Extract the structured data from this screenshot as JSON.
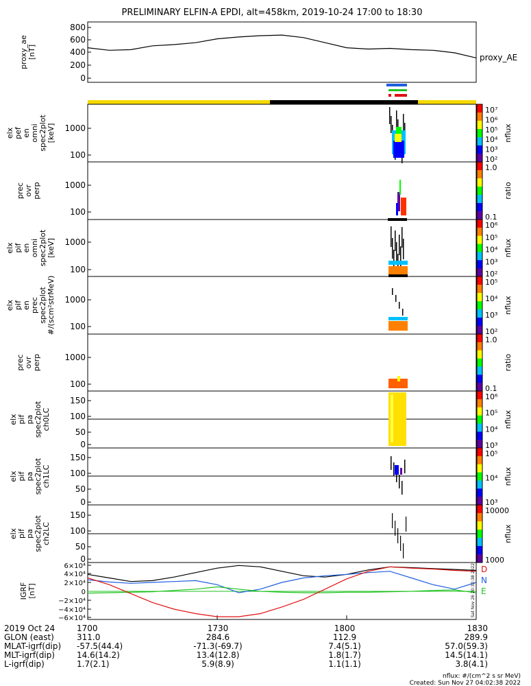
{
  "title": "PRELIMINARY ELFIN-A EPDI, alt=458km, 2019-10-24 17:00 to 18:30",
  "colors": {
    "yellow": "#f5d800",
    "black": "#000000",
    "blue": "#1e5ddf",
    "green": "#1ec21e",
    "red": "#e01010"
  },
  "panels": [
    {
      "id": "ae",
      "ylabel": [
        "proxy_ae",
        "[nT]"
      ],
      "right": "proxy_AE",
      "yticks": [
        "800",
        "600",
        "400",
        "200",
        "0"
      ]
    },
    {
      "id": "p1",
      "ylabel": [
        "elx",
        "pef",
        "en",
        "omni",
        "spec2plot",
        "[keV]"
      ],
      "yticks": [
        "1000",
        "100"
      ],
      "cbar_label": "nflux",
      "cbar_ticks": [
        "10⁷",
        "10⁶",
        "10⁵",
        "10⁴",
        "10³",
        "10²"
      ]
    },
    {
      "id": "p2",
      "ylabel": [
        "prec",
        "ovr",
        "perp"
      ],
      "yticks": [
        "1000",
        "100"
      ],
      "cbar_label": "ratio",
      "cbar_ticks": [
        "1.0",
        "0.1"
      ]
    },
    {
      "id": "p3",
      "ylabel": [
        "elx",
        "pif",
        "en",
        "omni",
        "spec2plot",
        "[keV]"
      ],
      "yticks": [
        "1000",
        "100"
      ],
      "cbar_label": "nflux",
      "cbar_ticks": [
        "10⁶",
        "10⁵",
        "10⁴",
        "10³",
        "10²"
      ]
    },
    {
      "id": "p4",
      "ylabel": [
        "elx",
        "pif",
        "en",
        "prec",
        "spec2plot",
        "#/(scm²strMeV)"
      ],
      "yticks": [
        "1000",
        "100"
      ],
      "cbar_label": "nflux",
      "cbar_ticks": [
        "10⁵",
        "10⁴",
        "10³",
        "10²"
      ]
    },
    {
      "id": "p5",
      "ylabel": [
        "prec",
        "ovr",
        "perp"
      ],
      "yticks": [
        "1000",
        "100"
      ],
      "cbar_label": "ratio",
      "cbar_ticks": [
        "1.0",
        "0.1"
      ]
    },
    {
      "id": "p6",
      "ylabel": [
        "elx",
        "pif",
        "pa",
        "spec2plot",
        "ch0LC"
      ],
      "yticks": [
        "150",
        "100",
        "50",
        "0"
      ],
      "cbar_label": "nflux",
      "cbar_ticks": [
        "10⁶",
        "10⁵",
        "10⁴",
        "10³"
      ]
    },
    {
      "id": "p7",
      "ylabel": [
        "elx",
        "pif",
        "pa",
        "spec2plot",
        "ch1LC"
      ],
      "yticks": [
        "150",
        "100",
        "50",
        "0"
      ],
      "cbar_label": "nflux",
      "cbar_ticks": [
        "10⁵",
        "10⁴",
        "10³"
      ]
    },
    {
      "id": "p8",
      "ylabel": [
        "elx",
        "pif",
        "pa",
        "spec2plot",
        "ch2LC"
      ],
      "yticks": [
        "150",
        "100",
        "50",
        "0"
      ],
      "cbar_label": "nflux",
      "cbar_ticks": [
        "10000",
        "1000"
      ]
    },
    {
      "id": "igrf",
      "ylabel": [
        "IGRF",
        "[nT]"
      ],
      "yticks": [
        "6×10⁴",
        "4×10⁴",
        "2×10⁴",
        "0",
        "−2×10⁴",
        "−4×10⁴",
        "−6×10⁴"
      ],
      "legend": [
        "D",
        "N",
        "E"
      ]
    }
  ],
  "xaxis": {
    "rows": [
      {
        "label": "2019 Oct 24",
        "values": [
          "1700",
          "1730",
          "1800",
          "1830"
        ]
      },
      {
        "label": "GLON (east)",
        "values": [
          "311.0",
          "284.6",
          "112.9",
          "289.9"
        ]
      },
      {
        "label": "MLAT-igrf(dip)",
        "values": [
          "-57.5(44.4)",
          "-71.3(-69.7)",
          "7.4(5.1)",
          "57.0(59.3)"
        ]
      },
      {
        "label": "MLT-igrf(dip)",
        "values": [
          "14.6(14.2)",
          "13.4(12.8)",
          "1.8(1.7)",
          "14.5(14.1)"
        ]
      },
      {
        "label": "L-igrf(dip)",
        "values": [
          "1.7(2.1)",
          "5.9(8.9)",
          "1.1(1.1)",
          "3.8(4.1)"
        ]
      }
    ]
  },
  "footer": {
    "units": "nflux: #/(cm^2 s sr MeV)",
    "created": "Created: Sun Nov 27 04:02:38 2022",
    "side": "Sat Nov 26 20:32:38 2022"
  },
  "chart_data": {
    "type": "line",
    "x_time_range": [
      "17:00",
      "18:30"
    ],
    "proxy_ae": {
      "time_min": [
        0,
        5,
        10,
        15,
        20,
        25,
        30,
        35,
        40,
        45,
        50,
        55,
        60,
        65,
        70,
        75,
        80,
        85,
        90
      ],
      "values": [
        480,
        440,
        450,
        510,
        530,
        560,
        620,
        650,
        670,
        680,
        640,
        560,
        480,
        460,
        470,
        450,
        440,
        400,
        320
      ]
    },
    "igrf_components": {
      "time_min": [
        0,
        5,
        10,
        15,
        20,
        25,
        30,
        35,
        40,
        45,
        50,
        55,
        60,
        65,
        70,
        75,
        80,
        85,
        90
      ],
      "D_red": [
        30000,
        15000,
        -5000,
        -25000,
        -40000,
        -50000,
        -57000,
        -57000,
        -50000,
        -35000,
        -18000,
        5000,
        28000,
        45000,
        55000,
        52000,
        50000,
        47000,
        45000
      ],
      "N_blue": [
        26000,
        21000,
        18000,
        20000,
        22000,
        24000,
        15000,
        -3000,
        5000,
        20000,
        30000,
        35000,
        38000,
        42000,
        45000,
        30000,
        15000,
        5000,
        20000
      ],
      "E_green": [
        -4000,
        -3000,
        -2000,
        -1000,
        2000,
        5000,
        10000,
        5000,
        0,
        -2000,
        -3000,
        -3000,
        -2000,
        -2000,
        -1000,
        0,
        2000,
        3000,
        -3000
      ],
      "total_black": [
        38000,
        30000,
        22000,
        24000,
        32000,
        42000,
        52000,
        58000,
        55000,
        45000,
        35000,
        32000,
        38000,
        48000,
        55000,
        53000,
        51000,
        49000,
        47000
      ]
    },
    "legend": [
      "D",
      "N",
      "E"
    ]
  }
}
